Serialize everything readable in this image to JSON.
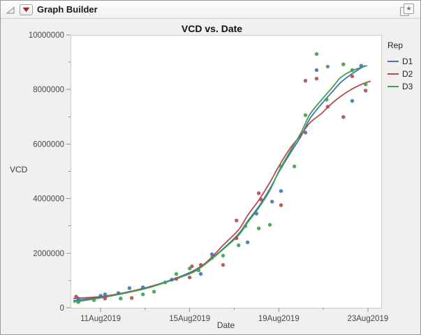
{
  "window": {
    "title": "Graph Builder",
    "icons": [
      "disclosure-triangle-icon",
      "red-triangle-menu-icon",
      "combine-windows-star-icon"
    ]
  },
  "chart": {
    "title": "VCD vs. Date",
    "x_axis": {
      "label": "Date",
      "domain_days_aug2019": [
        9.65,
        23.6
      ],
      "major_ticks": [
        {
          "day": 11,
          "label": "11Aug2019"
        },
        {
          "day": 15,
          "label": "15Aug2019"
        },
        {
          "day": 19,
          "label": "19Aug2019"
        },
        {
          "day": 23,
          "label": "23Aug2019"
        }
      ],
      "minor_tick_days": [
        13,
        17,
        21
      ]
    },
    "y_axis": {
      "label": "VCD",
      "domain": [
        0,
        10000000
      ],
      "major_ticks": [
        {
          "value": 0,
          "label": "0"
        },
        {
          "value": 2000000,
          "label": "2000000"
        },
        {
          "value": 4000000,
          "label": "4000000"
        },
        {
          "value": 6000000,
          "label": "6000000"
        },
        {
          "value": 8000000,
          "label": "8000000"
        },
        {
          "value": 10000000,
          "label": "10000000"
        }
      ],
      "minor_tick_values": [
        1000000,
        3000000,
        5000000,
        7000000,
        9000000
      ]
    },
    "legend": {
      "title": "Rep",
      "position": "right"
    },
    "colors": {
      "axis": "#8f8f8c",
      "plot_border": "#cbcbc8",
      "tick_text": "#474745",
      "menu_triangle_red": "#a3242e"
    }
  },
  "chart_data": {
    "type": "scatter",
    "smoother": true,
    "title": "VCD vs. Date",
    "xlabel": "Date",
    "ylabel": "VCD",
    "x_unit": "day of August 2019",
    "ylim": [
      0,
      10000000
    ],
    "grid": false,
    "legend_position": "right",
    "series": [
      {
        "name": "D1",
        "color": "#4173b4",
        "points": [
          [
            10.0,
            340000
          ],
          [
            11.0,
            440000
          ],
          [
            11.2,
            490000
          ],
          [
            11.8,
            540000
          ],
          [
            12.3,
            720000
          ],
          [
            12.9,
            750000
          ],
          [
            14.2,
            1030000
          ],
          [
            15.5,
            1240000
          ],
          [
            16.0,
            1960000
          ],
          [
            17.6,
            2400000
          ],
          [
            18.0,
            3450000
          ],
          [
            18.7,
            3890000
          ],
          [
            19.1,
            4280000
          ],
          [
            20.2,
            6420000
          ],
          [
            20.7,
            8710000
          ],
          [
            22.3,
            7580000
          ],
          [
            22.7,
            8870000
          ]
        ],
        "smoother_curve": [
          [
            9.8,
            260000
          ],
          [
            11.0,
            390000
          ],
          [
            12.0,
            540000
          ],
          [
            13.1,
            750000
          ],
          [
            14.2,
            1030000
          ],
          [
            15.2,
            1370000
          ],
          [
            15.9,
            1750000
          ],
          [
            16.5,
            2160000
          ],
          [
            17.2,
            2710000
          ],
          [
            17.6,
            3170000
          ],
          [
            18.1,
            3710000
          ],
          [
            18.6,
            4360000
          ],
          [
            19.0,
            4970000
          ],
          [
            19.5,
            5640000
          ],
          [
            20.0,
            6290000
          ],
          [
            20.4,
            6930000
          ],
          [
            20.9,
            7450000
          ],
          [
            21.4,
            7910000
          ],
          [
            21.8,
            8270000
          ],
          [
            22.3,
            8580000
          ],
          [
            22.85,
            8870000
          ]
        ]
      },
      {
        "name": "D2",
        "color": "#b8494c",
        "points": [
          [
            9.9,
            410000
          ],
          [
            11.2,
            340000
          ],
          [
            12.4,
            360000
          ],
          [
            14.4,
            1060000
          ],
          [
            15.0,
            1110000
          ],
          [
            15.1,
            1520000
          ],
          [
            15.5,
            1570000
          ],
          [
            16.5,
            1570000
          ],
          [
            17.1,
            2550000
          ],
          [
            17.1,
            3200000
          ],
          [
            18.1,
            4200000
          ],
          [
            18.2,
            3970000
          ],
          [
            19.1,
            3760000
          ],
          [
            20.2,
            8320000
          ],
          [
            20.7,
            8400000
          ],
          [
            21.2,
            7370000
          ],
          [
            21.9,
            6990000
          ],
          [
            22.3,
            8480000
          ],
          [
            22.9,
            7960000
          ]
        ],
        "smoother_curve": [
          [
            9.8,
            340000
          ],
          [
            11.0,
            410000
          ],
          [
            12.0,
            540000
          ],
          [
            13.1,
            750000
          ],
          [
            14.2,
            1010000
          ],
          [
            15.2,
            1340000
          ],
          [
            15.9,
            1780000
          ],
          [
            16.5,
            2290000
          ],
          [
            17.2,
            2860000
          ],
          [
            17.6,
            3380000
          ],
          [
            18.1,
            3940000
          ],
          [
            18.6,
            4590000
          ],
          [
            19.0,
            5180000
          ],
          [
            19.5,
            5830000
          ],
          [
            20.0,
            6340000
          ],
          [
            20.4,
            6780000
          ],
          [
            20.9,
            7110000
          ],
          [
            21.4,
            7500000
          ],
          [
            21.8,
            7760000
          ],
          [
            22.3,
            8020000
          ],
          [
            22.75,
            8200000
          ],
          [
            23.1,
            8300000
          ]
        ]
      },
      {
        "name": "D3",
        "color": "#3f9e4f",
        "points": [
          [
            10.0,
            210000
          ],
          [
            10.7,
            280000
          ],
          [
            11.9,
            340000
          ],
          [
            12.9,
            490000
          ],
          [
            13.4,
            590000
          ],
          [
            13.9,
            930000
          ],
          [
            14.4,
            1240000
          ],
          [
            15.0,
            1440000
          ],
          [
            15.4,
            1370000
          ],
          [
            16.0,
            1830000
          ],
          [
            16.5,
            1910000
          ],
          [
            17.2,
            2290000
          ],
          [
            17.5,
            2990000
          ],
          [
            18.1,
            2910000
          ],
          [
            18.6,
            3040000
          ],
          [
            19.1,
            5180000
          ],
          [
            19.7,
            5180000
          ],
          [
            20.2,
            7060000
          ],
          [
            20.7,
            9300000
          ],
          [
            21.15,
            7630000
          ],
          [
            21.2,
            8840000
          ],
          [
            21.9,
            8920000
          ],
          [
            22.3,
            8710000
          ],
          [
            22.9,
            8190000
          ]
        ],
        "smoother_curve": [
          [
            9.8,
            210000
          ],
          [
            11.0,
            360000
          ],
          [
            12.0,
            520000
          ],
          [
            13.1,
            720000
          ],
          [
            14.2,
            1010000
          ],
          [
            15.2,
            1320000
          ],
          [
            15.9,
            1730000
          ],
          [
            16.5,
            2140000
          ],
          [
            17.2,
            2660000
          ],
          [
            17.6,
            3120000
          ],
          [
            18.1,
            3660000
          ],
          [
            18.6,
            4300000
          ],
          [
            19.0,
            5000000
          ],
          [
            19.5,
            5720000
          ],
          [
            20.0,
            6420000
          ],
          [
            20.4,
            7090000
          ],
          [
            20.9,
            7600000
          ],
          [
            21.4,
            8070000
          ],
          [
            21.8,
            8450000
          ],
          [
            22.3,
            8690000
          ],
          [
            22.95,
            8870000
          ]
        ]
      }
    ]
  }
}
